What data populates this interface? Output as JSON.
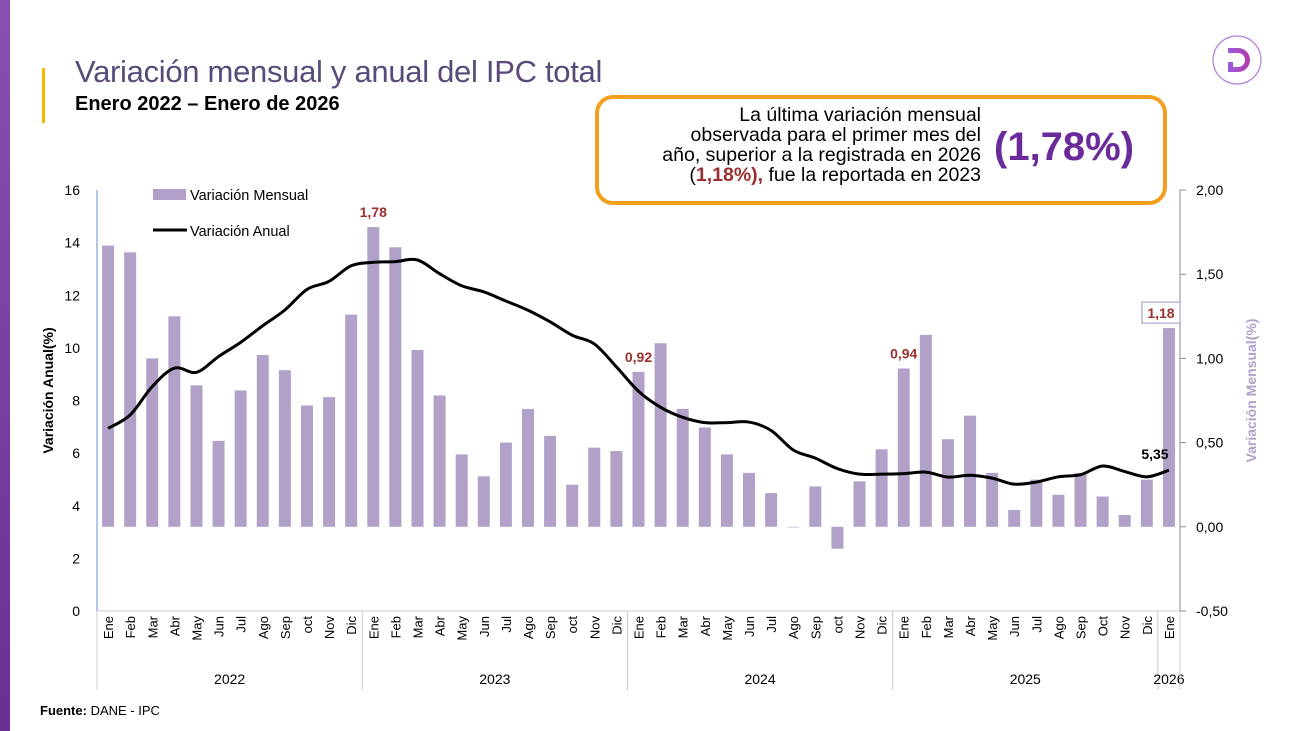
{
  "header": {
    "title": "Variación mensual y anual del IPC total",
    "subtitle": "Enero 2022 – Enero de 2026"
  },
  "callout": {
    "line1": "La última variación mensual",
    "line2": "observada para el primer mes del",
    "line3": "año, superior a la registrada en 2026",
    "line4_pre": "(",
    "line4_hl": "1,18%),",
    "line4_post": " fue la reportada en 2023",
    "big": "(1,78%)"
  },
  "source": {
    "label": "Fuente:",
    "text": " DANE - IPC"
  },
  "colors": {
    "bar": "#b1a1c9",
    "line": "#000000",
    "label": "#9b2f2f",
    "callout_border": "#f29f1c",
    "accent": "#6a2a9a"
  },
  "logo": {
    "icon": "d-logo-icon",
    "text": "D"
  },
  "chart_data": {
    "type": "bar+line",
    "title": "Variación mensual y anual del IPC total",
    "subtitle": "Enero 2022 – Enero de 2026",
    "ylabel_left": "Variación Anual(%)",
    "ylabel_right": "Variación Mensual(%)",
    "ylim_left": [
      0,
      16
    ],
    "yticks_left": [
      "0",
      "2",
      "4",
      "6",
      "8",
      "10",
      "12",
      "14",
      "16"
    ],
    "ylim_right": [
      -0.5,
      2.0
    ],
    "yticks_right": [
      "-0,50",
      "0,00",
      "0,50",
      "1,00",
      "1,50",
      "2,00"
    ],
    "legend": {
      "placement": "top-left",
      "items": [
        "Variación Mensual",
        "Variación Anual"
      ]
    },
    "grid": false,
    "months": [
      "Ene",
      "Feb",
      "Mar",
      "Abr",
      "May",
      "Jun",
      "Jul",
      "Ago",
      "Sep",
      "oct",
      "Nov",
      "Dic",
      "Ene",
      "Feb",
      "Mar",
      "Abr",
      "May",
      "Jun",
      "Jul",
      "Ago",
      "Sep",
      "oct",
      "Nov",
      "Dic",
      "Ene",
      "Feb",
      "Mar",
      "Abr",
      "May",
      "Jun",
      "Jul",
      "Ago",
      "Sep",
      "oct",
      "Nov",
      "Dic",
      "Ene",
      "Feb",
      "Mar",
      "Abr",
      "May",
      "Jun",
      "Jul",
      "Ago",
      "Sep",
      "Oct",
      "Nov",
      "Dic",
      "Ene"
    ],
    "years": [
      {
        "label": "2022",
        "count": 12
      },
      {
        "label": "2023",
        "count": 12
      },
      {
        "label": "2024",
        "count": 12
      },
      {
        "label": "2025",
        "count": 12
      },
      {
        "label": "2026",
        "count": 1
      }
    ],
    "series": [
      {
        "name": "Variación Mensual",
        "type": "bar",
        "axis": "right",
        "values": [
          1.67,
          1.63,
          1.0,
          1.25,
          0.84,
          0.51,
          0.81,
          1.02,
          0.93,
          0.72,
          0.77,
          1.26,
          1.78,
          1.66,
          1.05,
          0.78,
          0.43,
          0.3,
          0.5,
          0.7,
          0.54,
          0.25,
          0.47,
          0.45,
          0.92,
          1.09,
          0.7,
          0.59,
          0.43,
          0.32,
          0.2,
          0.0,
          0.24,
          -0.13,
          0.27,
          0.46,
          0.94,
          1.14,
          0.52,
          0.66,
          0.32,
          0.1,
          0.28,
          0.19,
          0.32,
          0.18,
          0.07,
          0.28,
          1.18
        ]
      },
      {
        "name": "Variación Anual",
        "type": "line",
        "axis": "left",
        "values": [
          6.94,
          7.45,
          8.53,
          9.23,
          9.07,
          9.67,
          10.21,
          10.84,
          11.44,
          12.22,
          12.53,
          13.12,
          13.25,
          13.28,
          13.34,
          12.82,
          12.36,
          12.13,
          11.78,
          11.43,
          10.99,
          10.48,
          10.15,
          9.28,
          8.35,
          7.74,
          7.36,
          7.16,
          7.16,
          7.18,
          6.86,
          6.12,
          5.81,
          5.41,
          5.2,
          5.2,
          5.22,
          5.28,
          5.09,
          5.16,
          5.05,
          4.82,
          4.9,
          5.1,
          5.18,
          5.51,
          5.3,
          5.1,
          5.35
        ]
      }
    ],
    "annotations": [
      {
        "series": "Variación Mensual",
        "index": 12,
        "text": "1,78"
      },
      {
        "series": "Variación Mensual",
        "index": 24,
        "text": "0,92"
      },
      {
        "series": "Variación Mensual",
        "index": 36,
        "text": "0,94"
      },
      {
        "series": "Variación Mensual",
        "index": 48,
        "text": "1,18",
        "boxed": true
      },
      {
        "series": "Variación Anual",
        "index": 48,
        "text": "5,35"
      }
    ]
  }
}
